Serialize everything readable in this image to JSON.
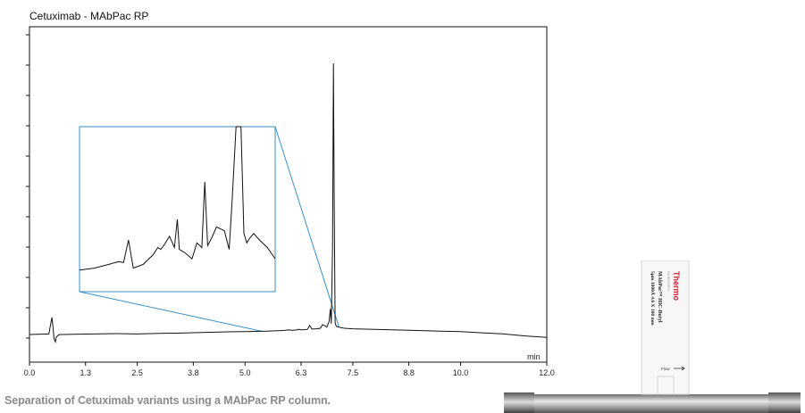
{
  "chart_data": {
    "type": "line",
    "title": "Cetuximab - MAbPac RP",
    "xlabel": "min",
    "ylabel": "",
    "xlim": [
      0.0,
      12.0
    ],
    "x_ticks": [
      "0.0",
      "1.3",
      "2.5",
      "3.8",
      "5.0",
      "6.3",
      "7.5",
      "8.8",
      "10.0",
      "12.0"
    ],
    "x_tick_values": [
      0.0,
      1.3,
      2.5,
      3.8,
      5.0,
      6.3,
      7.5,
      8.8,
      10.0,
      12.0
    ],
    "grid": false,
    "series": [
      {
        "name": "",
        "color": "#111111",
        "x": [
          0.0,
          0.45,
          0.52,
          0.55,
          0.57,
          0.6,
          0.62,
          0.66,
          0.7,
          0.8,
          1.0,
          1.5,
          2.0,
          2.5,
          3.0,
          3.5,
          4.0,
          4.5,
          5.0,
          5.5,
          5.9,
          6.0,
          6.1,
          6.2,
          6.25,
          6.3,
          6.45,
          6.5,
          6.55,
          6.65,
          6.75,
          6.8,
          6.9,
          6.95,
          6.98,
          7.0,
          7.03,
          7.05,
          7.07,
          7.09,
          7.12,
          7.2,
          7.3,
          7.5,
          8.0,
          8.5,
          9.0,
          9.5,
          10.0,
          10.5,
          11.0,
          11.5,
          12.0
        ],
        "y": [
          0.0,
          0.2,
          6.0,
          2.0,
          -1.5,
          -2.6,
          -1.0,
          -0.3,
          0.0,
          0.0,
          0.1,
          0.2,
          0.3,
          0.2,
          0.4,
          0.5,
          0.7,
          0.9,
          1.0,
          1.2,
          1.4,
          1.6,
          1.5,
          1.6,
          1.8,
          1.6,
          1.8,
          3.2,
          1.9,
          2.0,
          2.2,
          3.5,
          2.6,
          4.5,
          9.0,
          3.8,
          30.0,
          95.0,
          45.0,
          4.0,
          2.8,
          2.5,
          2.2,
          2.0,
          1.8,
          1.6,
          1.4,
          1.2,
          1.0,
          0.6,
          0.2,
          -0.5,
          -1.0
        ]
      }
    ],
    "inset": {
      "xlim": [
        5.2,
        7.2
      ],
      "series": [
        {
          "x": [
            5.2,
            5.35,
            5.5,
            5.6,
            5.65,
            5.7,
            5.75,
            5.85,
            5.95,
            6.0,
            6.03,
            6.06,
            6.12,
            6.17,
            6.2,
            6.22,
            6.27,
            6.35,
            6.4,
            6.45,
            6.48,
            6.51,
            6.55,
            6.6,
            6.68,
            6.73,
            6.76,
            6.8,
            6.85,
            6.88,
            6.91,
            6.94,
            6.98,
            7.04,
            7.12,
            7.2
          ],
          "y": [
            6,
            8,
            12,
            15,
            14,
            38,
            8,
            12,
            22,
            30,
            28,
            32,
            42,
            30,
            60,
            28,
            25,
            18,
            35,
            30,
            100,
            32,
            40,
            52,
            48,
            28,
            80,
            160,
            160,
            45,
            35,
            40,
            45,
            38,
            30,
            18
          ]
        }
      ]
    }
  },
  "caption": "Separation of Cetuximab variants using a MAbPac RP column.",
  "column_label": {
    "brand": "Thermo",
    "brand_sub": "SCIENTIFIC",
    "line1": "MAbPac™ HIC-Butyl",
    "line2": "5µm 1000Å 4.6 X 100 mm",
    "flow": "Flow"
  }
}
